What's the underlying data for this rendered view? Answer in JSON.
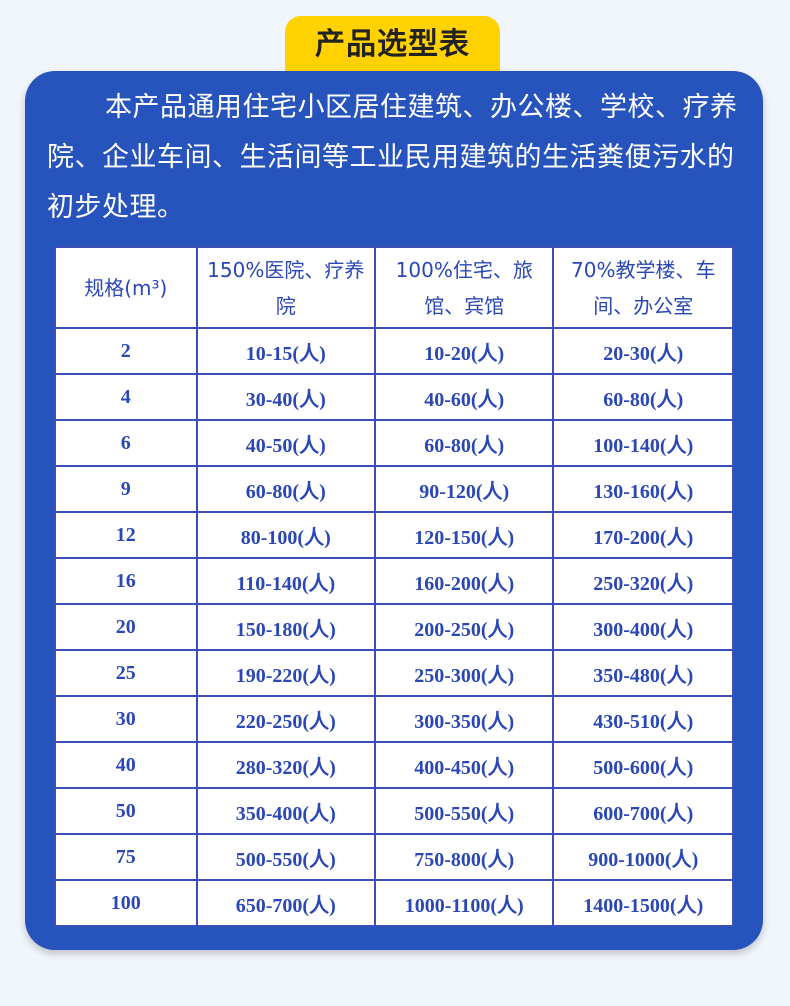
{
  "title": "产品选型表",
  "intro": "本产品通用住宅小区居住建筑、办公楼、学校、疗养院、企业车间、生活间等工业民用建筑的生活粪便污水的初步处理。",
  "colors": {
    "background": "#f1f5fc",
    "card": "#2653bc",
    "title_pill": "#ffd200",
    "table_text": "#2a47b5"
  },
  "table": {
    "headers": [
      "规格(m³)",
      "150%医院、疗养院",
      "100%住宅、旅馆、宾馆",
      "70%教学楼、车间、办公室"
    ],
    "rows": [
      [
        "2",
        "10-15(人)",
        "10-20(人)",
        "20-30(人)"
      ],
      [
        "4",
        "30-40(人)",
        "40-60(人)",
        "60-80(人)"
      ],
      [
        "6",
        "40-50(人)",
        "60-80(人)",
        "100-140(人)"
      ],
      [
        "9",
        "60-80(人)",
        "90-120(人)",
        "130-160(人)"
      ],
      [
        "12",
        "80-100(人)",
        "120-150(人)",
        "170-200(人)"
      ],
      [
        "16",
        "110-140(人)",
        "160-200(人)",
        "250-320(人)"
      ],
      [
        "20",
        "150-180(人)",
        "200-250(人)",
        "300-400(人)"
      ],
      [
        "25",
        "190-220(人)",
        "250-300(人)",
        "350-480(人)"
      ],
      [
        "30",
        "220-250(人)",
        "300-350(人)",
        "430-510(人)"
      ],
      [
        "40",
        "280-320(人)",
        "400-450(人)",
        "500-600(人)"
      ],
      [
        "50",
        "350-400(人)",
        "500-550(人)",
        "600-700(人)"
      ],
      [
        "75",
        "500-550(人)",
        "750-800(人)",
        "900-1000(人)"
      ],
      [
        "100",
        "650-700(人)",
        "1000-1100(人)",
        "1400-1500(人)"
      ]
    ]
  }
}
